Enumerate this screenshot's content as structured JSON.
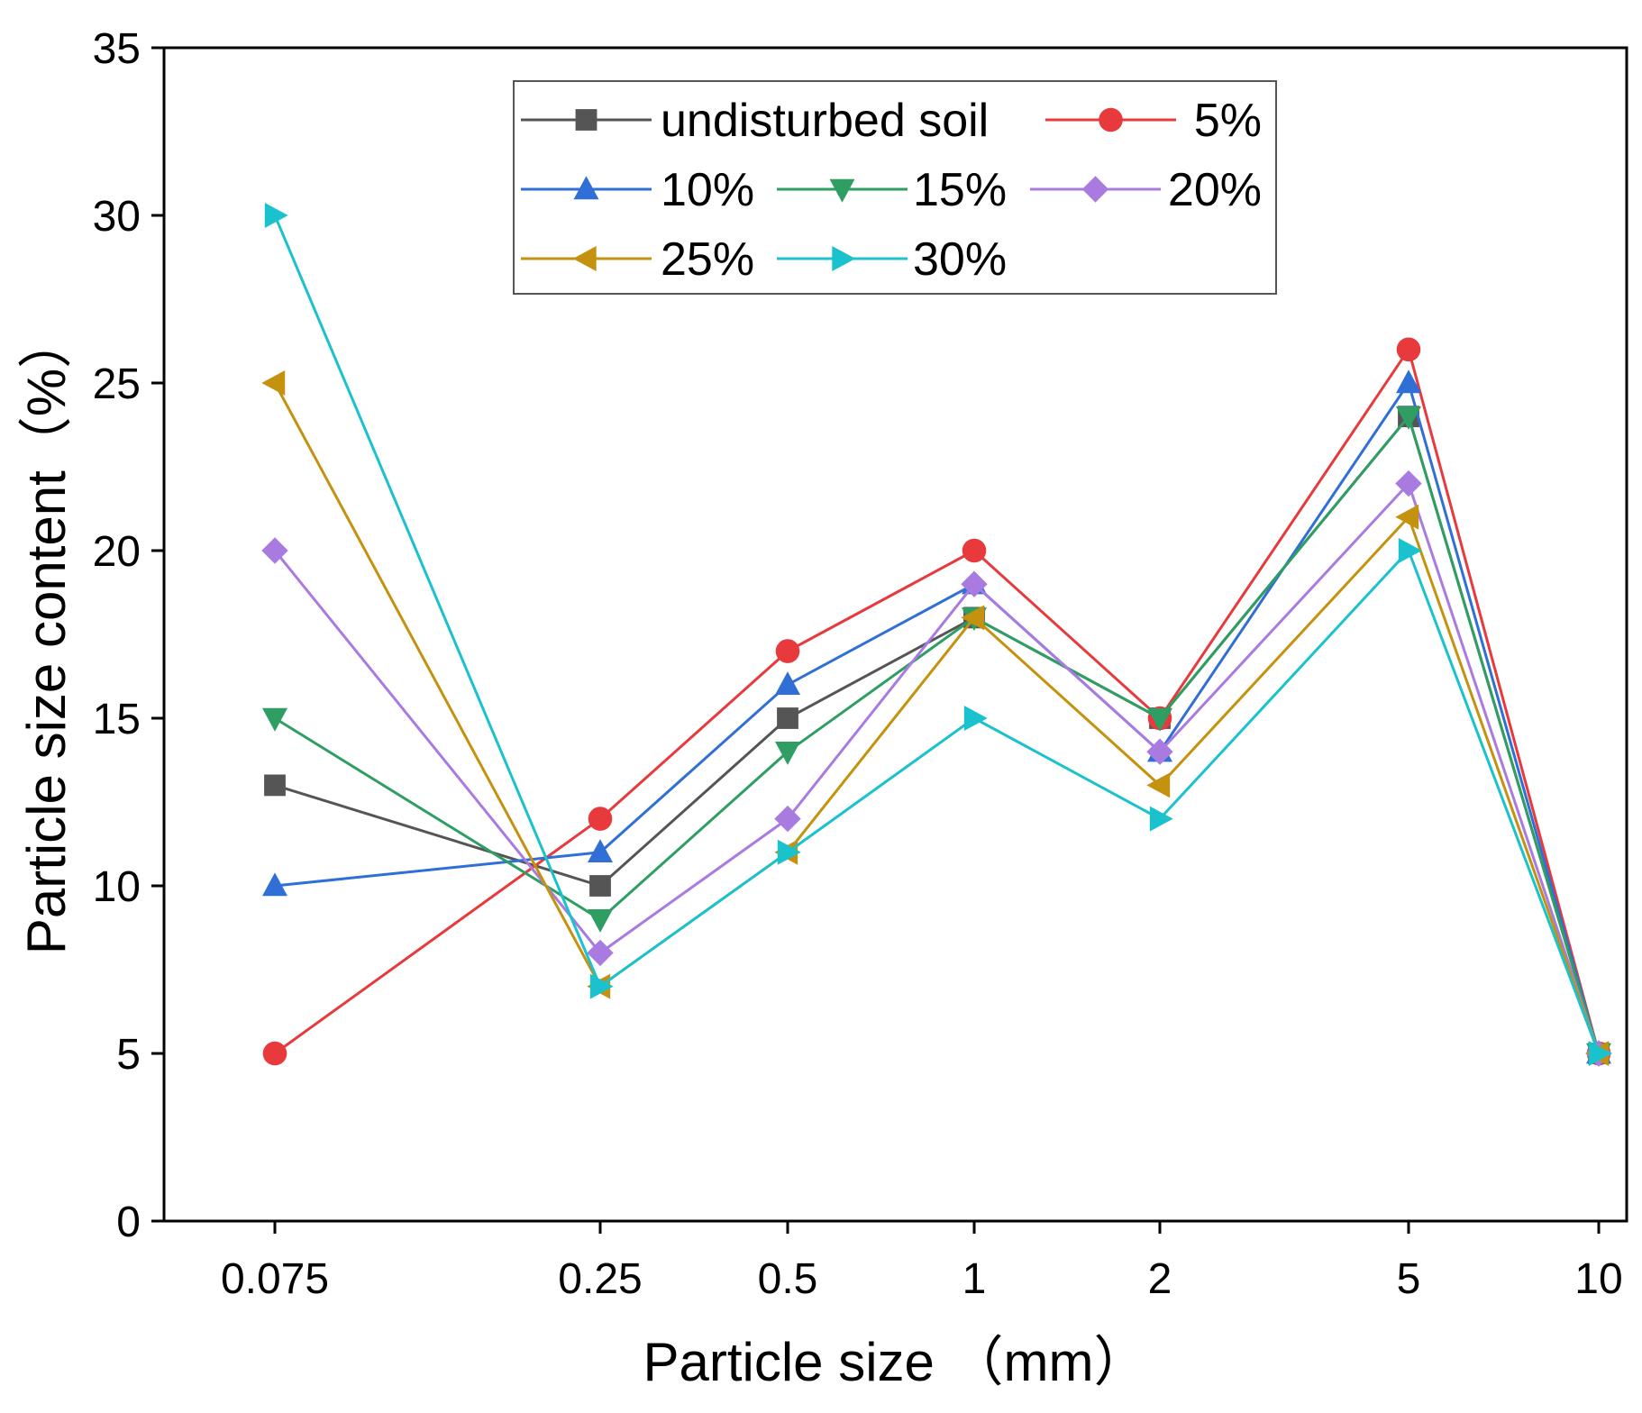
{
  "chart_data": {
    "type": "line",
    "title": "",
    "xlabel": "Particle size （mm）",
    "ylabel": "Particle size content（%）",
    "categories": [
      "0.075",
      "0.25",
      "0.5",
      "1",
      "2",
      "5",
      "10"
    ],
    "x": [
      0.075,
      0.25,
      0.5,
      1,
      2,
      5,
      10
    ],
    "x_scale": "log",
    "ylim": [
      0,
      35
    ],
    "yticks": [
      0,
      5,
      10,
      15,
      20,
      25,
      30,
      35
    ],
    "ytick_labels": [
      "0",
      "5",
      "10",
      "15",
      "20",
      "25",
      "30",
      "35"
    ],
    "grid": false,
    "legend_position": "top-center",
    "series": [
      {
        "name": "undisturbed soil",
        "color": "#555555",
        "marker": "square",
        "values": [
          13,
          10,
          15,
          18,
          15,
          24,
          5
        ]
      },
      {
        "name": "5%",
        "color": "#e8393c",
        "marker": "circle",
        "values": [
          5,
          12,
          17,
          20,
          15,
          26,
          5
        ]
      },
      {
        "name": "10%",
        "color": "#2f6fd6",
        "marker": "triangle-up",
        "values": [
          10,
          11,
          16,
          19,
          14,
          25,
          5
        ]
      },
      {
        "name": "15%",
        "color": "#2e9e62",
        "marker": "triangle-down",
        "values": [
          15,
          9,
          14,
          18,
          15,
          24,
          5
        ]
      },
      {
        "name": "20%",
        "color": "#a97be0",
        "marker": "diamond",
        "values": [
          20,
          8,
          12,
          19,
          14,
          22,
          5
        ]
      },
      {
        "name": "25%",
        "color": "#c4920e",
        "marker": "triangle-left",
        "values": [
          25,
          7,
          11,
          18,
          13,
          21,
          5
        ]
      },
      {
        "name": "30%",
        "color": "#19c2cc",
        "marker": "triangle-right",
        "values": [
          30,
          7,
          11,
          15,
          12,
          20,
          5
        ]
      }
    ]
  }
}
